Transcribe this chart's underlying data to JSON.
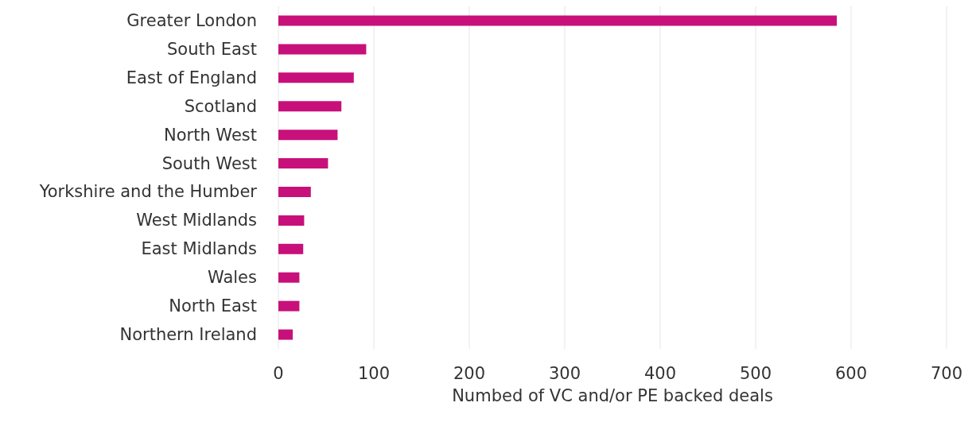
{
  "chart_data": {
    "type": "bar",
    "orientation": "horizontal",
    "xlabel": "Numbed of VC and/or PE backed deals",
    "categories": [
      "Greater London",
      "South East",
      "East of England",
      "Scotland",
      "North West",
      "South West",
      "Yorkshire and the Humber",
      "West Midlands",
      "East Midlands",
      "Wales",
      "North East",
      "Northern Ireland"
    ],
    "values": [
      585,
      92,
      79,
      66,
      62,
      52,
      34,
      27,
      26,
      22,
      22,
      15
    ],
    "color": "#c8107a",
    "xlim": [
      0,
      700
    ],
    "xticks": [
      0,
      100,
      200,
      300,
      400,
      500,
      600,
      700
    ],
    "grid": "x"
  }
}
